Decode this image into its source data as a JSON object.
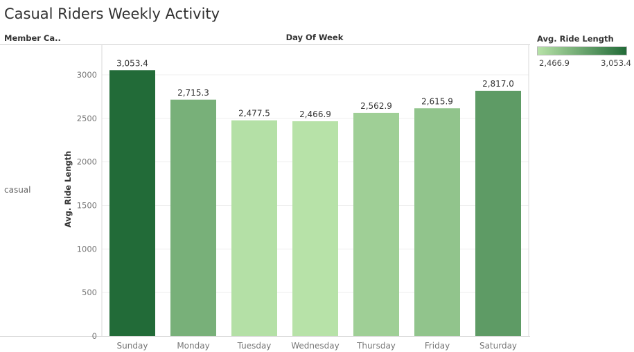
{
  "title": "Casual Riders Weekly Activity",
  "headers": {
    "member_category": "Member Ca..",
    "day_of_week": "Day Of Week"
  },
  "row_label": "casual",
  "legend": {
    "title": "Avg. Ride Length",
    "min_label": "2,466.9",
    "max_label": "3,053.4",
    "min_color": "#b7e2a8",
    "max_color": "#226b38"
  },
  "chart_data": {
    "type": "bar",
    "categories": [
      "Sunday",
      "Monday",
      "Tuesday",
      "Wednesday",
      "Thursday",
      "Friday",
      "Saturday"
    ],
    "values": [
      3053.4,
      2715.3,
      2477.5,
      2466.9,
      2562.9,
      2615.9,
      2817.0
    ],
    "value_labels": [
      "3,053.4",
      "2,715.3",
      "2,477.5",
      "2,466.9",
      "2,562.9",
      "2,615.9",
      "2,817.0"
    ],
    "ylabel": "Avg. Ride Length",
    "yticks": [
      0,
      500,
      1000,
      1500,
      2000,
      2500,
      3000
    ],
    "ylim": [
      0,
      3350
    ],
    "grid": true,
    "color_scale": [
      "#b7e2a8",
      "#226b38"
    ]
  }
}
